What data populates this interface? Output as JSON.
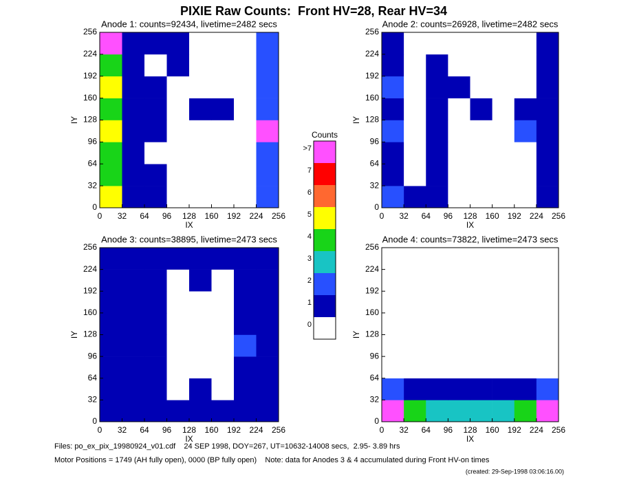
{
  "title": "PIXIE Raw Counts:  Front HV=28, Rear HV=34",
  "colorbar": {
    "title": "Counts",
    "ticks": [
      0,
      1,
      2,
      3,
      4,
      5,
      6,
      7,
      {
        "value": 8,
        "label": ">7"
      }
    ],
    "colors": [
      "#ffffff",
      "#0000b4",
      "#2850ff",
      "#18c4c4",
      "#18d418",
      "#ffff00",
      "#ff6830",
      "#ff0000",
      "#ff50ff"
    ]
  },
  "chart_data": [
    {
      "type": "heatmap",
      "title": "Anode 1: counts=92434, livetime=2482 secs",
      "xlabel": "IX",
      "ylabel": "IY",
      "xlim": [
        0,
        256
      ],
      "ylim": [
        0,
        256
      ],
      "xticks": [
        0,
        32,
        64,
        96,
        128,
        160,
        192,
        224,
        256
      ],
      "yticks": [
        0,
        32,
        64,
        96,
        128,
        160,
        192,
        224,
        256
      ],
      "values": [
        [
          5,
          1,
          1,
          0,
          0,
          0,
          0,
          2
        ],
        [
          4,
          1,
          1,
          0,
          0,
          0,
          0,
          2
        ],
        [
          4,
          1,
          0,
          0,
          0,
          0,
          0,
          2
        ],
        [
          5,
          1,
          1,
          0,
          0,
          0,
          0,
          8
        ],
        [
          4,
          1,
          1,
          0,
          1,
          1,
          0,
          2
        ],
        [
          5,
          1,
          1,
          0,
          0,
          0,
          0,
          2
        ],
        [
          4,
          1,
          0,
          1,
          0,
          0,
          0,
          2
        ],
        [
          8,
          1,
          1,
          1,
          0,
          0,
          0,
          2
        ]
      ]
    },
    {
      "type": "heatmap",
      "title": "Anode 2: counts=26928, livetime=2482 secs",
      "xlabel": "IX",
      "ylabel": "IY",
      "xlim": [
        0,
        256
      ],
      "ylim": [
        0,
        256
      ],
      "xticks": [
        0,
        32,
        64,
        96,
        128,
        160,
        192,
        224,
        256
      ],
      "yticks": [
        0,
        32,
        64,
        96,
        128,
        160,
        192,
        224,
        256
      ],
      "values": [
        [
          2,
          1,
          1,
          0,
          0,
          0,
          0,
          1
        ],
        [
          1,
          0,
          1,
          0,
          0,
          0,
          0,
          1
        ],
        [
          1,
          0,
          1,
          0,
          0,
          0,
          0,
          1
        ],
        [
          2,
          0,
          1,
          0,
          0,
          0,
          2,
          1
        ],
        [
          1,
          0,
          1,
          0,
          1,
          0,
          1,
          1
        ],
        [
          2,
          0,
          1,
          1,
          0,
          0,
          0,
          1
        ],
        [
          1,
          0,
          1,
          0,
          0,
          0,
          0,
          1
        ],
        [
          1,
          0,
          0,
          0,
          0,
          0,
          0,
          1
        ]
      ]
    },
    {
      "type": "heatmap",
      "title": "Anode 3: counts=38895, livetime=2473 secs",
      "xlabel": "IX",
      "ylabel": "IY",
      "xlim": [
        0,
        256
      ],
      "ylim": [
        0,
        256
      ],
      "xticks": [
        0,
        32,
        64,
        96,
        128,
        160,
        192,
        224,
        256
      ],
      "yticks": [
        0,
        32,
        64,
        96,
        128,
        160,
        192,
        224,
        256
      ],
      "values": [
        [
          1,
          1,
          1,
          1,
          1,
          1,
          1,
          1
        ],
        [
          1,
          1,
          1,
          0,
          1,
          0,
          1,
          1
        ],
        [
          1,
          1,
          1,
          0,
          0,
          0,
          1,
          1
        ],
        [
          1,
          1,
          1,
          0,
          0,
          0,
          2,
          1
        ],
        [
          1,
          1,
          1,
          0,
          0,
          0,
          1,
          1
        ],
        [
          1,
          1,
          1,
          0,
          0,
          0,
          1,
          1
        ],
        [
          1,
          1,
          1,
          0,
          1,
          0,
          1,
          1
        ],
        [
          1,
          1,
          1,
          1,
          1,
          1,
          1,
          1
        ]
      ]
    },
    {
      "type": "heatmap",
      "title": "Anode 4: counts=73822, livetime=2473 secs",
      "xlabel": "IX",
      "ylabel": "IY",
      "xlim": [
        0,
        256
      ],
      "ylim": [
        0,
        256
      ],
      "xticks": [
        0,
        32,
        64,
        96,
        128,
        160,
        192,
        224,
        256
      ],
      "yticks": [
        0,
        32,
        64,
        96,
        128,
        160,
        192,
        224,
        256
      ],
      "values": [
        [
          8,
          4,
          3,
          3,
          3,
          3,
          4,
          8
        ],
        [
          2,
          1,
          1,
          1,
          1,
          1,
          1,
          2
        ],
        [
          0,
          0,
          0,
          0,
          0,
          0,
          0,
          0
        ],
        [
          0,
          0,
          0,
          0,
          0,
          0,
          0,
          0
        ],
        [
          0,
          0,
          0,
          0,
          0,
          0,
          0,
          0
        ],
        [
          0,
          0,
          0,
          0,
          0,
          0,
          0,
          0
        ],
        [
          0,
          0,
          0,
          0,
          0,
          0,
          0,
          0
        ],
        [
          0,
          0,
          0,
          0,
          0,
          0,
          0,
          0
        ]
      ]
    }
  ],
  "footer": [
    "Files: po_ex_pix_19980924_v01.cdf    24 SEP 1998, DOY=267, UT=10632-14008 secs,  2.95- 3.89 hrs",
    "Motor Positions = 1749 (AH fully open), 0000 (BP fully open)    Note: data for Anodes 3 & 4 accumulated during Front HV-on times",
    "(created: 29-Sep-1998 03:06:16.00)"
  ]
}
